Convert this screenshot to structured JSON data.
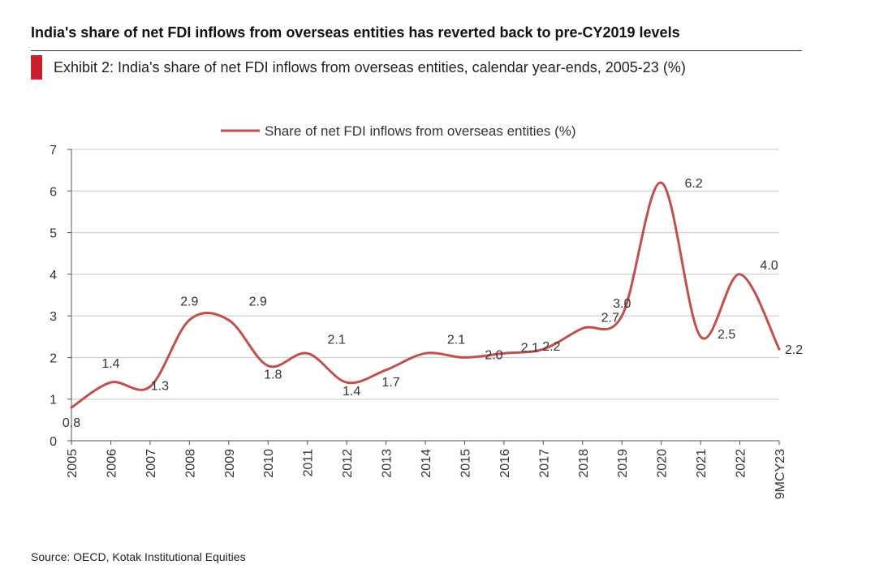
{
  "headline": "India's share of net FDI inflows from overseas entities has reverted back to pre-CY2019 levels",
  "subtitle": "Exhibit 2: India's share of net FDI inflows from overseas entities, calendar year-ends, 2005-23 (%)",
  "source": "Source: OECD, Kotak Institutional Equities",
  "colors": {
    "series": "#c0504d",
    "accent": "#c8202e",
    "grid": "#c8c8c8"
  },
  "chart_data": {
    "type": "line",
    "title": "",
    "xlabel": "",
    "ylabel": "",
    "ylim": [
      0,
      7
    ],
    "yticks": [
      0,
      1,
      2,
      3,
      4,
      5,
      6,
      7
    ],
    "grid": true,
    "legend_position": "top-center",
    "categories": [
      "2005",
      "2006",
      "2007",
      "2008",
      "2009",
      "2010",
      "2011",
      "2012",
      "2013",
      "2014",
      "2015",
      "2016",
      "2017",
      "2018",
      "2019",
      "2020",
      "2021",
      "2022",
      "9MCY23"
    ],
    "series": [
      {
        "name": "Share of net FDI inflows from overseas entities (%)",
        "values": [
          0.8,
          1.4,
          1.3,
          2.9,
          2.9,
          1.8,
          2.1,
          1.4,
          1.7,
          2.1,
          2.0,
          2.1,
          2.2,
          2.7,
          3.0,
          6.2,
          2.5,
          4.0,
          2.2
        ],
        "labels": [
          "0.8",
          "1.4",
          "1.3",
          "2.9",
          "2.9",
          "1.8",
          "2.1",
          "1.4",
          "1.7",
          "2.1",
          "2.0",
          "2.1",
          "2.2",
          "2.7",
          "3.0",
          "6.2",
          "2.5",
          "4.0",
          "2.2"
        ]
      }
    ]
  }
}
